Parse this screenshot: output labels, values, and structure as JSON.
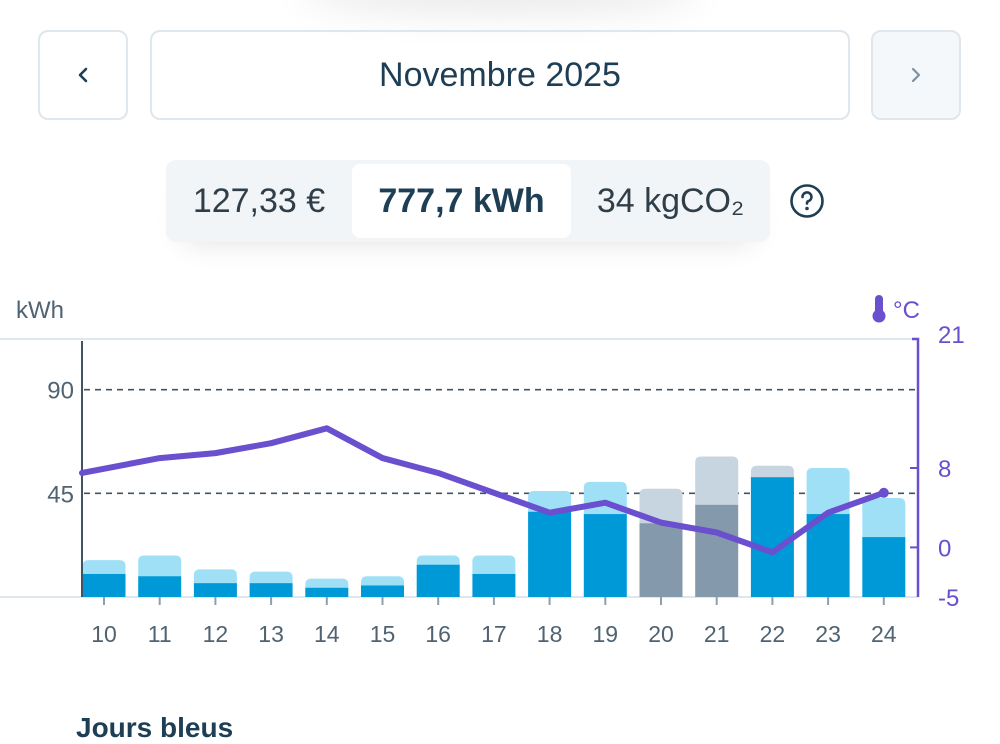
{
  "nav": {
    "prev_icon": "chevron-left-icon",
    "next_icon": "chevron-right-icon",
    "month_label": "Novembre 2025"
  },
  "summary": {
    "price": "127,33 €",
    "energy": "777,7 kWh",
    "co2": "34 kgCO₂",
    "help_icon": "question-circle-icon"
  },
  "colors": {
    "bar_main": "#0099d8",
    "bar_top": "#9fe0f7",
    "bar_gray_main": "#8499ab",
    "bar_gray_top": "#c7d5e0",
    "temperature_line": "#6a4fce",
    "text_dark": "#1d3e54"
  },
  "chart_data": {
    "type": "bar",
    "categories": [
      "10",
      "11",
      "12",
      "13",
      "14",
      "15",
      "16",
      "17",
      "18",
      "19",
      "20",
      "21",
      "22",
      "23",
      "24"
    ],
    "series": [
      {
        "values": [
          10,
          9,
          6,
          6,
          4,
          5,
          14,
          10,
          37,
          36,
          32,
          40,
          52,
          36,
          26
        ]
      },
      {
        "values": [
          6,
          9,
          6,
          5,
          4,
          4,
          4,
          8,
          9,
          14,
          15,
          21,
          5,
          20,
          17
        ]
      }
    ],
    "temperature": [
      7.5,
      9,
      9.5,
      10.5,
      12,
      9,
      7.5,
      5.5,
      3.5,
      4.5,
      2.5,
      1.5,
      -0.5,
      3.5,
      5.5
    ],
    "highlight": {
      "bottom_gray": [
        20,
        21
      ],
      "top_gray": [
        20,
        21,
        22
      ]
    },
    "y_left": {
      "label": "kWh",
      "ylim": [
        0,
        112
      ],
      "ticks": [
        45,
        90
      ],
      "gridlines": [
        45,
        90
      ]
    },
    "y_right": {
      "label": "°C",
      "icon": "thermometer-icon",
      "ylim": [
        -5,
        21
      ],
      "ticks": [
        21,
        8,
        0,
        -5
      ]
    },
    "grid": "dashed"
  },
  "footer": {
    "partial_heading": "Jours bleus"
  }
}
